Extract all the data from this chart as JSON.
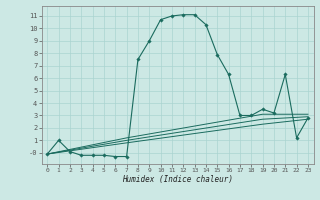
{
  "title": "",
  "xlabel": "Humidex (Indice chaleur)",
  "bg_color": "#cce8e4",
  "line_color": "#1a6b5e",
  "grid_color": "#aad4d0",
  "series": {
    "main": {
      "x": [
        0,
        1,
        2,
        3,
        4,
        5,
        6,
        7,
        8,
        9,
        10,
        11,
        12,
        13,
        14,
        15,
        16,
        17,
        18,
        19,
        20,
        21,
        22,
        23
      ],
      "y": [
        -0.1,
        1.0,
        0.1,
        -0.2,
        -0.2,
        -0.2,
        -0.3,
        -0.3,
        7.5,
        9.0,
        10.7,
        11.0,
        11.1,
        11.1,
        10.3,
        7.9,
        6.3,
        3.0,
        3.0,
        3.5,
        3.2,
        6.3,
        1.2,
        2.8
      ]
    },
    "line1": {
      "x": [
        0,
        7,
        19,
        23
      ],
      "y": [
        -0.1,
        1.2,
        3.1,
        3.1
      ]
    },
    "line2": {
      "x": [
        0,
        7,
        19,
        23
      ],
      "y": [
        -0.1,
        1.0,
        2.7,
        2.9
      ]
    },
    "line3": {
      "x": [
        0,
        7,
        19,
        23
      ],
      "y": [
        -0.1,
        0.8,
        2.3,
        2.7
      ]
    }
  },
  "xlim": [
    -0.5,
    23.5
  ],
  "ylim": [
    -0.9,
    11.8
  ],
  "yticks": [
    0,
    1,
    2,
    3,
    4,
    5,
    6,
    7,
    8,
    9,
    10,
    11
  ],
  "ytick_labels": [
    "-0",
    "1",
    "2",
    "3",
    "4",
    "5",
    "6",
    "7",
    "8",
    "9",
    "10",
    "11"
  ],
  "xticks": [
    0,
    1,
    2,
    3,
    4,
    5,
    6,
    7,
    8,
    9,
    10,
    11,
    12,
    13,
    14,
    15,
    16,
    17,
    18,
    19,
    20,
    21,
    22,
    23
  ],
  "xtick_labels": [
    "0",
    "1",
    "2",
    "3",
    "4",
    "5",
    "6",
    "7",
    "8",
    "9",
    "10",
    "11",
    "12",
    "13",
    "14",
    "15",
    "16",
    "17",
    "18",
    "19",
    "20",
    "21",
    "22",
    "23"
  ]
}
